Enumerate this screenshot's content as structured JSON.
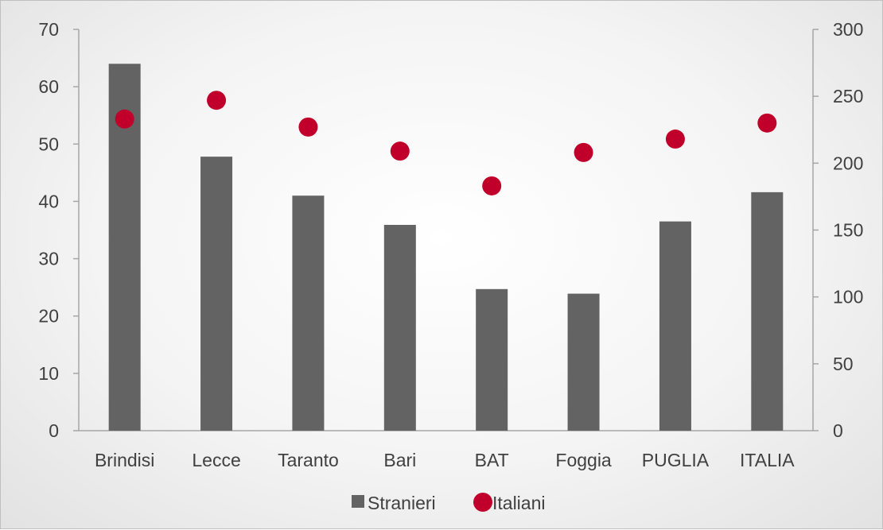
{
  "chart_data": {
    "type": "bar",
    "categories": [
      "Brindisi",
      "Lecce",
      "Taranto",
      "Bari",
      "BAT",
      "Foggia",
      "PUGLIA",
      "ITALIA"
    ],
    "series": [
      {
        "name": "Stranieri",
        "type": "bar",
        "axis": "left",
        "values": [
          64,
          47.8,
          41,
          35.9,
          24.7,
          23.9,
          36.5,
          41.6
        ],
        "color": "#636363"
      },
      {
        "name": "Italiani",
        "type": "scatter",
        "axis": "right",
        "values": [
          233,
          247,
          227,
          209,
          183,
          208,
          218,
          230
        ],
        "color": "#c0002a"
      }
    ],
    "y_left": {
      "min": 0,
      "max": 70,
      "ticks": [
        0,
        10,
        20,
        30,
        40,
        50,
        60,
        70
      ]
    },
    "y_right": {
      "min": 0,
      "max": 300,
      "ticks": [
        0,
        50,
        100,
        150,
        200,
        250,
        300
      ]
    },
    "legend": {
      "position": "bottom"
    },
    "grid": false
  }
}
